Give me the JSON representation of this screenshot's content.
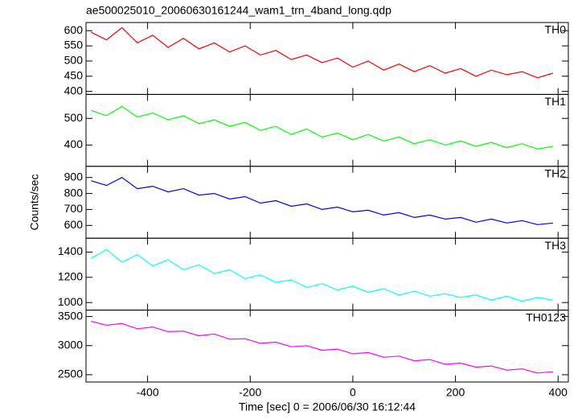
{
  "chart_data": [
    {
      "type": "line",
      "title": "ae500025010_20060630161244_wam1_trn_4band_long.qdp",
      "label": "TH0",
      "color": "#ff0000",
      "x": [
        -510,
        -480,
        -450,
        -420,
        -390,
        -360,
        -330,
        -300,
        -270,
        -240,
        -210,
        -180,
        -150,
        -120,
        -90,
        -60,
        -30,
        0,
        30,
        60,
        90,
        120,
        150,
        180,
        210,
        240,
        270,
        300,
        330,
        360,
        390
      ],
      "values": [
        595,
        570,
        610,
        560,
        585,
        545,
        575,
        540,
        560,
        530,
        550,
        520,
        535,
        505,
        520,
        495,
        510,
        480,
        500,
        470,
        490,
        465,
        485,
        460,
        475,
        450,
        470,
        455,
        465,
        445,
        460
      ],
      "xlim": [
        -520,
        420
      ],
      "ylim": [
        390,
        627
      ],
      "yticks": [
        400,
        450,
        500,
        550,
        600
      ]
    },
    {
      "type": "line",
      "label": "TH1",
      "color": "#00ff00",
      "x": [
        -510,
        -480,
        -450,
        -420,
        -390,
        -360,
        -330,
        -300,
        -270,
        -240,
        -210,
        -180,
        -150,
        -120,
        -90,
        -60,
        -30,
        0,
        30,
        60,
        90,
        120,
        150,
        180,
        210,
        240,
        270,
        300,
        330,
        360,
        390
      ],
      "values": [
        530,
        510,
        545,
        505,
        520,
        495,
        510,
        480,
        495,
        470,
        485,
        455,
        470,
        440,
        460,
        430,
        445,
        420,
        440,
        415,
        430,
        405,
        420,
        400,
        415,
        395,
        410,
        390,
        405,
        385,
        395
      ],
      "xlim": [
        -520,
        420
      ],
      "ylim": [
        320,
        590
      ],
      "yticks": [
        400,
        500
      ]
    },
    {
      "type": "line",
      "label": "TH2",
      "color": "#0000ff",
      "ylabel": "Counts/sec",
      "x": [
        -510,
        -480,
        -450,
        -420,
        -390,
        -360,
        -330,
        -300,
        -270,
        -240,
        -210,
        -180,
        -150,
        -120,
        -90,
        -60,
        -30,
        0,
        30,
        60,
        90,
        120,
        150,
        180,
        210,
        240,
        270,
        300,
        330,
        360,
        390
      ],
      "values": [
        880,
        850,
        900,
        830,
        845,
        810,
        830,
        790,
        800,
        765,
        780,
        740,
        755,
        720,
        735,
        700,
        715,
        685,
        695,
        665,
        680,
        650,
        665,
        640,
        650,
        620,
        640,
        615,
        630,
        605,
        615
      ],
      "xlim": [
        -520,
        420
      ],
      "ylim": [
        520,
        970
      ],
      "yticks": [
        600,
        700,
        800,
        900
      ]
    },
    {
      "type": "line",
      "label": "TH3",
      "color": "#00ffff",
      "x": [
        -510,
        -480,
        -450,
        -420,
        -390,
        -360,
        -330,
        -300,
        -270,
        -240,
        -210,
        -180,
        -150,
        -120,
        -90,
        -60,
        -30,
        0,
        30,
        60,
        90,
        120,
        150,
        180,
        210,
        240,
        270,
        300,
        330,
        360,
        390
      ],
      "values": [
        1350,
        1420,
        1320,
        1380,
        1290,
        1340,
        1260,
        1300,
        1230,
        1260,
        1190,
        1220,
        1160,
        1180,
        1120,
        1150,
        1100,
        1130,
        1080,
        1110,
        1060,
        1090,
        1050,
        1070,
        1040,
        1060,
        1020,
        1050,
        1010,
        1040,
        1020
      ],
      "xlim": [
        -520,
        420
      ],
      "ylim": [
        940,
        1510
      ],
      "yticks": [
        1000,
        1200,
        1400
      ]
    },
    {
      "type": "line",
      "label": "TH0123",
      "color": "#ff00ff",
      "xlabel": "Time [sec] 0 = 2006/06/30 16:12:44",
      "x": [
        -510,
        -480,
        -450,
        -420,
        -390,
        -360,
        -330,
        -300,
        -270,
        -240,
        -210,
        -180,
        -150,
        -120,
        -90,
        -60,
        -30,
        0,
        30,
        60,
        90,
        120,
        150,
        180,
        210,
        240,
        270,
        300,
        330,
        360,
        390
      ],
      "values": [
        3420,
        3350,
        3380,
        3290,
        3320,
        3240,
        3250,
        3170,
        3200,
        3110,
        3120,
        3040,
        3060,
        2980,
        3000,
        2920,
        2940,
        2860,
        2880,
        2800,
        2820,
        2740,
        2760,
        2680,
        2700,
        2630,
        2650,
        2580,
        2600,
        2530,
        2550
      ],
      "xlim": [
        -520,
        420
      ],
      "ylim": [
        2375,
        3610
      ],
      "yticks": [
        2500,
        3000,
        3500
      ],
      "xticks": [
        -400,
        -200,
        0,
        200,
        400
      ]
    }
  ]
}
